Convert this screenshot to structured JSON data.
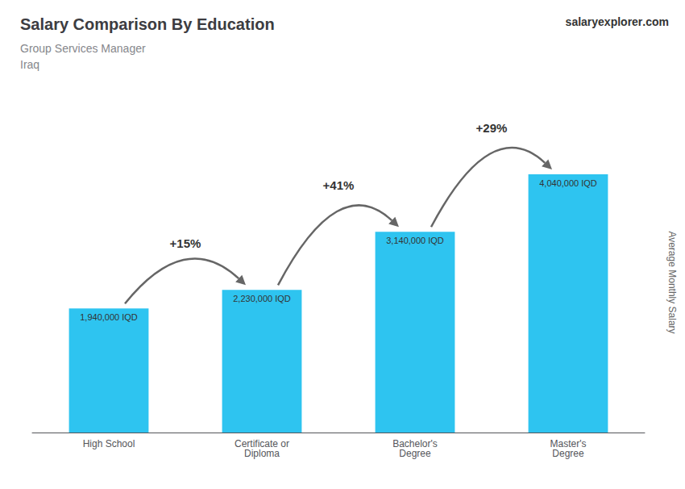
{
  "chart_data": {
    "type": "bar",
    "title": "Salary Comparison By Education",
    "subtitle": [
      "Group Services Manager",
      "Iraq"
    ],
    "ylabel": "Average Monthly Salary",
    "categories": [
      "High School",
      "Certificate or\nDiploma",
      "Bachelor's\nDegree",
      "Master's\nDegree"
    ],
    "values": [
      1940000,
      2230000,
      3140000,
      4040000
    ],
    "value_labels": [
      "1,940,000 IQD",
      "2,230,000 IQD",
      "3,140,000 IQD",
      "4,040,000 IQD"
    ],
    "data_labels": true,
    "color": "#2ec4f0",
    "ylim": [
      0,
      4242000
    ],
    "grid": false,
    "tick_labels": "x",
    "annotations": [
      {
        "text": "+15%",
        "from": 0,
        "to": 1
      },
      {
        "text": "+41%",
        "from": 1,
        "to": 2
      },
      {
        "text": "+29%",
        "from": 2,
        "to": 3
      },
      {
        "text": "salary"
      },
      {
        "text": "explorer"
      },
      {
        "text": ".com"
      }
    ]
  }
}
